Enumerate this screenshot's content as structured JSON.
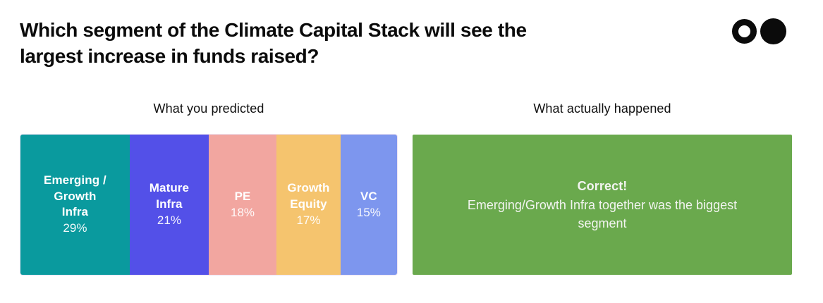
{
  "page": {
    "title_lines": [
      "Which segment of the Climate Capital Stack will see the",
      "largest increase in funds raised?"
    ]
  },
  "logo": {
    "description": "two-circle brand mark",
    "color": "#0b0b0b"
  },
  "predicted": {
    "heading": "What you predicted",
    "segments": [
      {
        "label": "Emerging /\nGrowth\nInfra",
        "value_label": "29%",
        "pct": 29,
        "color": "#0A9A9E"
      },
      {
        "label": "Mature\nInfra",
        "value_label": "21%",
        "pct": 21,
        "color": "#5350E8"
      },
      {
        "label": "PE",
        "value_label": "18%",
        "pct": 18,
        "color": "#F2A6A0"
      },
      {
        "label": "Growth\nEquity",
        "value_label": "17%",
        "pct": 17,
        "color": "#F5C46E"
      },
      {
        "label": "VC",
        "value_label": "15%",
        "pct": 15,
        "color": "#7D96EE"
      }
    ]
  },
  "actual": {
    "heading": "What actually happened",
    "result_title": "Correct!",
    "result_text": "Emerging/Growth Infra together was the biggest segment",
    "box_color": "#6AA94D",
    "text_color": "#f2f4f0"
  },
  "chart_data": {
    "type": "bar",
    "subtype": "horizontal-100pct-stacked",
    "title": "Which segment of the Climate Capital Stack will see the largest increase in funds raised?",
    "panels": [
      {
        "heading": "What you predicted",
        "categories": [
          "Emerging / Growth Infra",
          "Mature Infra",
          "PE",
          "Growth Equity",
          "VC"
        ],
        "values": [
          29,
          21,
          18,
          17,
          15
        ],
        "unit": "%",
        "colors": [
          "#0A9A9E",
          "#5350E8",
          "#F2A6A0",
          "#F5C46E",
          "#7D96EE"
        ],
        "value_labels": [
          "29%",
          "21%",
          "18%",
          "17%",
          "15%"
        ],
        "axis": "none",
        "grid": false,
        "legend": "labels-inside-segments"
      },
      {
        "heading": "What actually happened",
        "annotation_title": "Correct!",
        "annotation_text": "Emerging/Growth Infra together was the biggest segment",
        "color": "#6AA94D"
      }
    ]
  }
}
